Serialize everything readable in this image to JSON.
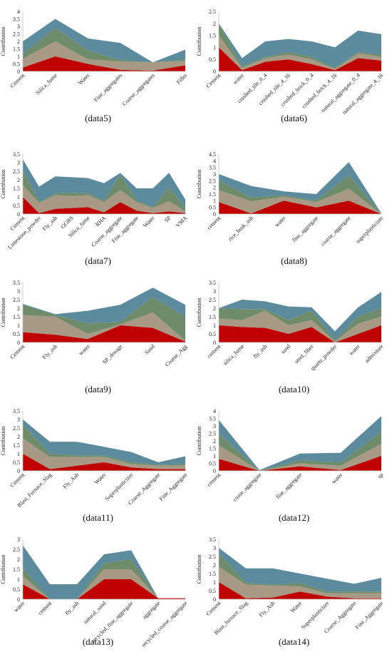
{
  "colors": [
    "#c00000",
    "#a89984",
    "#6e8c6a",
    "#5b8b9c"
  ],
  "chart_data": [
    {
      "type": "area",
      "caption": "(data5)",
      "ylabel": "Contribution",
      "ylim": [
        0,
        4
      ],
      "yticks": [
        0,
        0.5,
        1,
        1.5,
        2,
        2.5,
        3,
        3.5,
        4
      ],
      "categories": [
        "Cement",
        "Silica_fume",
        "Water",
        "Fine_aggregates",
        "Coarse_aggregates",
        "Filler"
      ],
      "series": [
        {
          "values": [
            0.25,
            1.0,
            0.5,
            0.1,
            0.05,
            0.4
          ]
        },
        {
          "values": [
            0.6,
            1.0,
            0.3,
            0.55,
            0.55,
            0.3
          ]
        },
        {
          "values": [
            0.3,
            0.9,
            0.6,
            0.1,
            0.0,
            0.1
          ]
        },
        {
          "values": [
            0.85,
            0.6,
            0.8,
            1.15,
            0.0,
            0.65
          ]
        }
      ]
    },
    {
      "type": "area",
      "caption": "(data6)",
      "ylabel": "Contribution",
      "ylim": [
        0,
        2.5
      ],
      "yticks": [
        0,
        0.5,
        1,
        1.5,
        2,
        2.5
      ],
      "categories": [
        "Cement",
        "water",
        "crushed_tile_0_4",
        "crushed_tile_4_16",
        "crushed_brick_0_4",
        "crushed_brick_4_16",
        "natural_aggregate_0_4",
        "natural_aggregate_4_16"
      ],
      "series": [
        {
          "values": [
            1.0,
            0.05,
            0.4,
            0.5,
            0.3,
            0.05,
            0.55,
            0.45
          ]
        },
        {
          "values": [
            0.5,
            0.1,
            0.15,
            0.2,
            0.2,
            0.05,
            0.2,
            0.15
          ]
        },
        {
          "values": [
            0.5,
            0.05,
            0.05,
            0.1,
            0.1,
            0.05,
            0.05,
            0.1
          ]
        },
        {
          "values": [
            0.0,
            0.35,
            0.65,
            0.55,
            0.65,
            0.85,
            0.9,
            0.85
          ]
        }
      ]
    },
    {
      "type": "area",
      "caption": "(data7)",
      "ylabel": "Contribution",
      "ylim": [
        0,
        3.5
      ],
      "yticks": [
        0,
        0.5,
        1,
        1.5,
        2,
        2.5,
        3,
        3.5
      ],
      "categories": [
        "Cement",
        "Limestone_powder",
        "Fly_ash",
        "GGBS",
        "Silica_fume",
        "RHA",
        "Coarse_aggregate",
        "Fine_aggregate",
        "Water",
        "SP",
        "VMA"
      ],
      "series": [
        {
          "values": [
            1.0,
            0.05,
            0.3,
            0.35,
            0.4,
            0.1,
            0.7,
            0.2,
            0.05,
            0.15,
            0.05
          ]
        },
        {
          "values": [
            0.7,
            0.6,
            0.8,
            0.7,
            0.7,
            0.6,
            0.7,
            0.5,
            0.3,
            0.6,
            0.1
          ]
        },
        {
          "values": [
            0.9,
            0.05,
            0.1,
            0.2,
            0.1,
            0.1,
            0.9,
            0.1,
            0.05,
            0.8,
            0.2
          ]
        },
        {
          "values": [
            0.6,
            0.9,
            1.0,
            0.9,
            0.9,
            1.0,
            0.1,
            0.7,
            1.1,
            0.85,
            0.5
          ]
        }
      ]
    },
    {
      "type": "area",
      "caption": "(data8)",
      "ylabel": "Contribution",
      "ylim": [
        0,
        4.5
      ],
      "yticks": [
        0,
        0.5,
        1,
        1.5,
        2,
        2.5,
        3,
        3.5,
        4,
        4.5
      ],
      "categories": [
        "cement",
        "rice_husk_ash",
        "water",
        "fine_aggregate",
        "coarse_aggregate",
        "superplasticizer"
      ],
      "series": [
        {
          "values": [
            0.9,
            0.05,
            1.0,
            0.5,
            1.0,
            0.0
          ]
        },
        {
          "values": [
            0.9,
            0.9,
            0.3,
            0.4,
            0.9,
            0.0
          ]
        },
        {
          "values": [
            0.7,
            0.3,
            0.1,
            0.1,
            1.0,
            0.0
          ]
        },
        {
          "values": [
            0.5,
            0.85,
            0.3,
            0.5,
            1.0,
            0.05
          ]
        }
      ]
    },
    {
      "type": "area",
      "caption": "(data9)",
      "ylabel": "Contribution",
      "ylim": [
        0,
        3.5
      ],
      "yticks": [
        0,
        0.5,
        1,
        1.5,
        2,
        2.5,
        3,
        3.5
      ],
      "categories": [
        "Cement",
        "Fly_ash",
        "water",
        "SP_dosage",
        "Sand",
        "Coarse_Agg"
      ],
      "series": [
        {
          "values": [
            0.6,
            0.45,
            0.2,
            1.0,
            0.85,
            0.05
          ]
        },
        {
          "values": [
            1.0,
            1.05,
            0.3,
            0.05,
            0.9,
            0.05
          ]
        },
        {
          "values": [
            0.6,
            0.1,
            0.6,
            0.15,
            0.9,
            1.4
          ]
        },
        {
          "values": [
            0.05,
            0.05,
            0.75,
            1.0,
            0.55,
            0.7
          ]
        }
      ]
    },
    {
      "type": "area",
      "caption": "(data10)",
      "ylabel": "Contribution",
      "ylim": [
        0,
        3.5
      ],
      "yticks": [
        0,
        0.5,
        1,
        1.5,
        2,
        2.5,
        3,
        3.5
      ],
      "categories": [
        "cement",
        "silica_fume",
        "fly_ash",
        "sand",
        "steel_fiber",
        "quartz_powder",
        "water",
        "admixture"
      ],
      "series": [
        {
          "values": [
            1.0,
            0.9,
            0.85,
            0.5,
            0.9,
            0.0,
            0.5,
            1.0
          ]
        },
        {
          "values": [
            0.4,
            0.4,
            1.0,
            0.5,
            0.4,
            0.05,
            0.6,
            0.5
          ]
        },
        {
          "values": [
            0.6,
            0.65,
            0.1,
            0.3,
            0.55,
            0.1,
            0.4,
            0.5
          ]
        },
        {
          "values": [
            0.0,
            0.55,
            0.45,
            0.8,
            0.2,
            0.5,
            0.55,
            0.95
          ]
        }
      ]
    },
    {
      "type": "area",
      "caption": "(data11)",
      "ylabel": "Contribution",
      "ylim": [
        0,
        3.5
      ],
      "yticks": [
        0,
        0.5,
        1,
        1.5,
        2,
        2.5,
        3,
        3.5
      ],
      "categories": [
        "Cement",
        "Blast_Furnace_Slag",
        "Fly_Ash",
        "Water",
        "Superplasticizer",
        "Coarse_Aggregate",
        "Fine_Aggregate"
      ],
      "series": [
        {
          "values": [
            1.0,
            0.1,
            0.3,
            0.5,
            0.2,
            0.1,
            0.1
          ]
        },
        {
          "values": [
            0.9,
            0.7,
            0.5,
            0.3,
            0.2,
            0.2,
            0.2
          ]
        },
        {
          "values": [
            0.8,
            0.2,
            0.1,
            0.1,
            0.1,
            0.05,
            0.1
          ]
        },
        {
          "values": [
            0.3,
            0.7,
            0.8,
            0.5,
            0.6,
            0.15,
            0.45
          ]
        }
      ]
    },
    {
      "type": "area",
      "caption": "(data12)",
      "ylabel": "Contribution",
      "ylim": [
        0,
        4
      ],
      "yticks": [
        0,
        0.5,
        1,
        1.5,
        2,
        2.5,
        3,
        3.5,
        4
      ],
      "categories": [
        "cement",
        "coase_aggregate",
        "fine_aggregate",
        "water",
        "sp"
      ],
      "series": [
        {
          "values": [
            0.8,
            0.0,
            0.3,
            0.05,
            1.0
          ]
        },
        {
          "values": [
            0.9,
            0.0,
            0.2,
            0.3,
            0.8
          ]
        },
        {
          "values": [
            0.8,
            0.0,
            0.2,
            0.2,
            0.8
          ]
        },
        {
          "values": [
            0.9,
            0.05,
            0.45,
            0.65,
            1.05
          ]
        }
      ]
    },
    {
      "type": "area",
      "caption": "(data13)",
      "ylabel": "Contribution",
      "ylim": [
        0,
        3
      ],
      "yticks": [
        0,
        0.5,
        1,
        1.5,
        2,
        2.5,
        3
      ],
      "categories": [
        "water",
        "cement",
        "fly_ash",
        "natural_sand",
        "recycled_fine_aggregate",
        "aggregate",
        "recycled_coarse_aggregate"
      ],
      "series": [
        {
          "values": [
            0.75,
            0.0,
            0.0,
            1.0,
            1.0,
            0.05,
            0.05
          ]
        },
        {
          "values": [
            0.4,
            0.0,
            0.0,
            0.5,
            0.5,
            0.0,
            0.0
          ]
        },
        {
          "values": [
            0.4,
            0.0,
            0.0,
            0.3,
            0.5,
            0.0,
            0.0
          ]
        },
        {
          "values": [
            1.15,
            0.75,
            0.75,
            0.45,
            0.45,
            0.0,
            0.0
          ]
        }
      ]
    },
    {
      "type": "area",
      "caption": "(data14)",
      "ylabel": "Contribution",
      "ylim": [
        0,
        3.5
      ],
      "yticks": [
        0,
        0.5,
        1,
        1.5,
        2,
        2.5,
        3,
        3.5
      ],
      "categories": [
        "Cement",
        "Blast_furnace_Slag",
        "Fly_Ash",
        "Water",
        "Superplasticizer",
        "Coarse_Aggregate",
        "Fine_Aggregate"
      ],
      "series": [
        {
          "values": [
            1.0,
            0.05,
            0.1,
            0.45,
            0.15,
            0.05,
            0.05
          ]
        },
        {
          "values": [
            0.9,
            0.8,
            0.7,
            0.3,
            0.2,
            0.3,
            0.3
          ]
        },
        {
          "values": [
            0.8,
            0.1,
            0.05,
            0.2,
            0.1,
            0.1,
            0.1
          ]
        },
        {
          "values": [
            0.3,
            0.85,
            0.95,
            0.55,
            0.75,
            0.45,
            0.8
          ]
        }
      ]
    }
  ]
}
